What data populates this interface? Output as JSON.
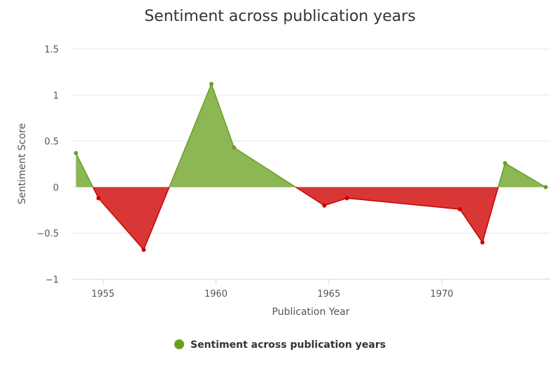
{
  "chart_data": {
    "type": "area",
    "title": "Sentiment across publication years",
    "xlabel": "Publication Year",
    "ylabel": "Sentiment Score",
    "xlim": [
      1953.6,
      1974.8
    ],
    "ylim": [
      -1,
      1.5
    ],
    "x_ticks": [
      1955,
      1960,
      1965,
      1970
    ],
    "y_ticks": [
      -1,
      -0.5,
      0,
      0.5,
      1,
      1.5
    ],
    "y_tick_labels": [
      "−1",
      "−0.5",
      "0",
      "0.5",
      "1",
      "1.5"
    ],
    "grid": true,
    "legend_position": "bottom-center",
    "threshold": 0,
    "positive_color": "#6a9e23",
    "negative_color": "#cc0000",
    "positive_fill": "#8db654",
    "negative_fill": "#d93636",
    "series": [
      {
        "name": "Sentiment across publication years",
        "x": [
          1953.8,
          1954.8,
          1956.8,
          1959.8,
          1960.8,
          1964.8,
          1965.8,
          1970.8,
          1971.8,
          1972.8,
          1974.6
        ],
        "y": [
          0.37,
          -0.12,
          -0.68,
          1.12,
          0.43,
          -0.2,
          -0.12,
          -0.24,
          -0.6,
          0.26,
          0.0
        ]
      }
    ]
  }
}
